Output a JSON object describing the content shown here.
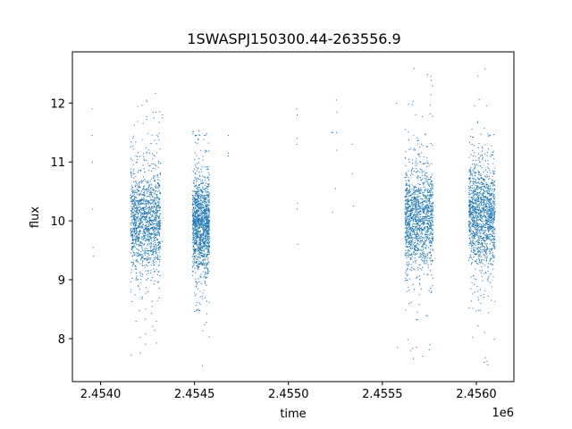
{
  "chart_data": {
    "type": "scatter",
    "title": "1SWASPJ150300.44-263556.9",
    "xlabel": "time",
    "ylabel": "flux",
    "x_offset_label": "1e6",
    "xlim": [
      2453850,
      2456200
    ],
    "ylim": [
      7.27,
      12.87
    ],
    "x_ticks": [
      2454000,
      2454500,
      2455000,
      2455500,
      2456000
    ],
    "x_tick_labels": [
      "2.4540",
      "2.4545",
      "2.4550",
      "2.4555",
      "2.4560"
    ],
    "y_ticks": [
      8,
      9,
      10,
      11,
      12
    ],
    "y_tick_labels": [
      "8",
      "9",
      "10",
      "11",
      "12"
    ],
    "grid": false,
    "legend": "none",
    "marker_color": "#1f77b4",
    "clusters": [
      {
        "x_range": [
          2454160,
          2454320
        ],
        "center_flux": 10.0,
        "spread": 0.55,
        "flux_range": [
          7.6,
          12.4
        ]
      },
      {
        "x_range": [
          2454490,
          2454580
        ],
        "center_flux": 9.95,
        "spread": 0.5,
        "flux_range": [
          7.5,
          11.6
        ]
      },
      {
        "x_range": [
          2455620,
          2455770
        ],
        "center_flux": 10.05,
        "spread": 0.55,
        "flux_range": [
          7.6,
          12.6
        ]
      },
      {
        "x_range": [
          2455960,
          2456100
        ],
        "center_flux": 10.1,
        "spread": 0.55,
        "flux_range": [
          7.5,
          12.6
        ]
      }
    ],
    "sparse_points": [
      {
        "x": 2453955,
        "y": 11.9
      },
      {
        "x": 2453955,
        "y": 11.45
      },
      {
        "x": 2453957,
        "y": 11.0
      },
      {
        "x": 2453958,
        "y": 10.2
      },
      {
        "x": 2453960,
        "y": 9.55
      },
      {
        "x": 2453961,
        "y": 9.4
      },
      {
        "x": 2454330,
        "y": 11.8
      },
      {
        "x": 2454330,
        "y": 11.75
      },
      {
        "x": 2454330,
        "y": 9.65
      },
      {
        "x": 2454680,
        "y": 11.45
      },
      {
        "x": 2454680,
        "y": 11.15
      },
      {
        "x": 2454680,
        "y": 11.1
      },
      {
        "x": 2455045,
        "y": 11.9
      },
      {
        "x": 2455047,
        "y": 11.8
      },
      {
        "x": 2455046,
        "y": 11.4
      },
      {
        "x": 2455044,
        "y": 11.3
      },
      {
        "x": 2455048,
        "y": 10.3
      },
      {
        "x": 2455047,
        "y": 10.2
      },
      {
        "x": 2455049,
        "y": 9.6
      },
      {
        "x": 2455230,
        "y": 11.5
      },
      {
        "x": 2455235,
        "y": 11.5
      },
      {
        "x": 2455255,
        "y": 12.05
      },
      {
        "x": 2455258,
        "y": 11.85
      },
      {
        "x": 2455256,
        "y": 11.5
      },
      {
        "x": 2455257,
        "y": 11.2
      },
      {
        "x": 2455250,
        "y": 10.55
      },
      {
        "x": 2455235,
        "y": 10.15
      },
      {
        "x": 2455340,
        "y": 11.3
      },
      {
        "x": 2455340,
        "y": 10.8
      },
      {
        "x": 2455345,
        "y": 10.25
      },
      {
        "x": 2455580,
        "y": 7.85
      },
      {
        "x": 2455575,
        "y": 12.0
      }
    ]
  }
}
